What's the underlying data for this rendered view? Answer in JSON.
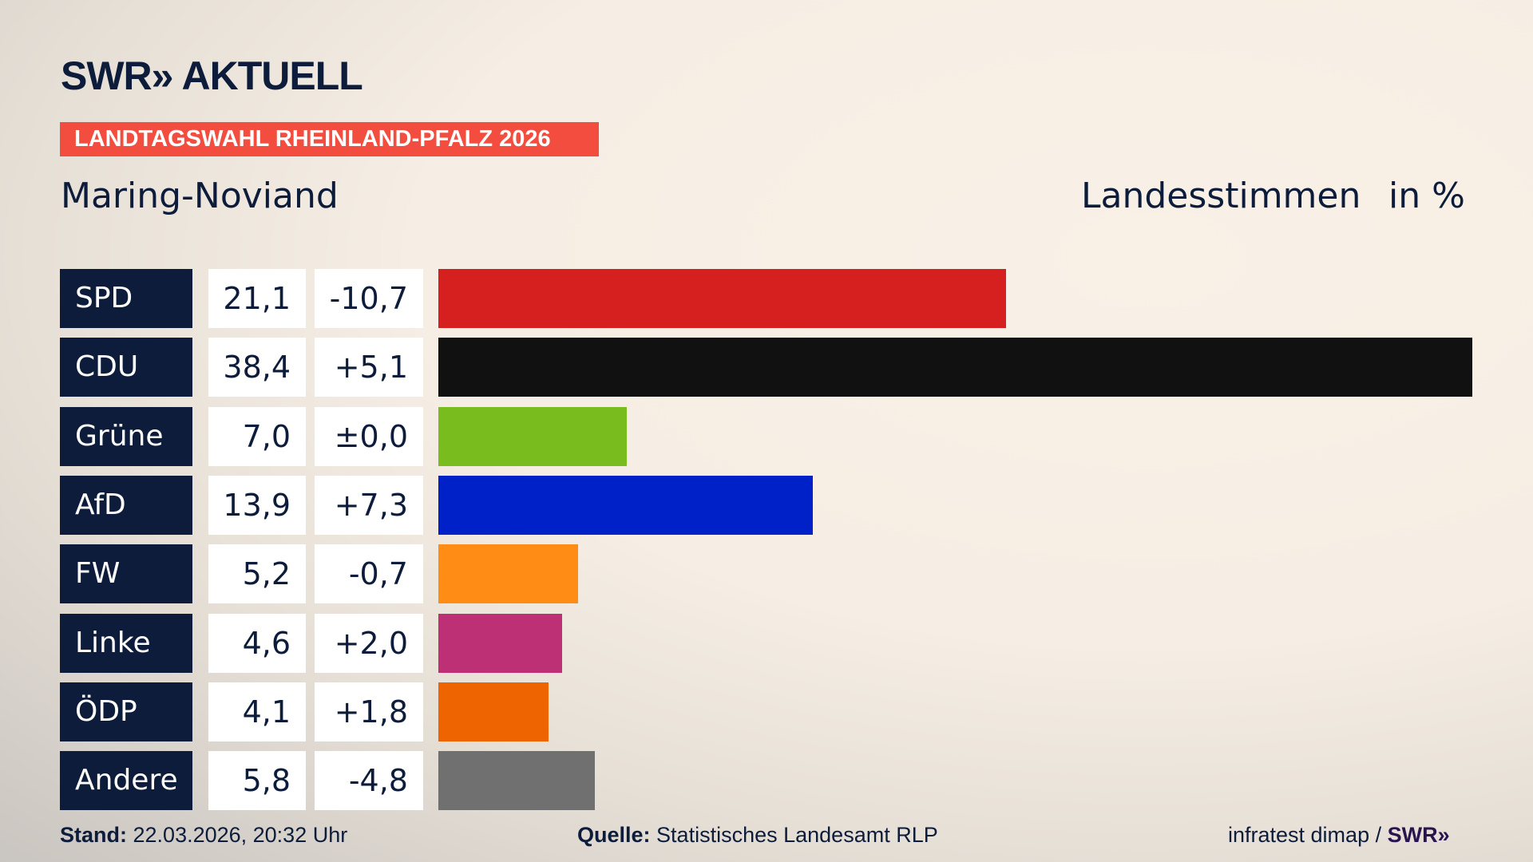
{
  "logo": "SWR» AKTUELL",
  "banner": "LANDTAGSWAHL RHEINLAND-PFALZ 2026",
  "subtitle": "Maring-Noviand",
  "header": {
    "label": "Landesstimmen",
    "unit": "in %"
  },
  "chart_data": {
    "type": "bar",
    "orientation": "horizontal",
    "categories": [
      "SPD",
      "CDU",
      "Grüne",
      "AfD",
      "FW",
      "Linke",
      "ÖDP",
      "Andere"
    ],
    "values": [
      21.1,
      38.4,
      7.0,
      13.9,
      5.2,
      4.6,
      4.1,
      5.8
    ],
    "value_labels": [
      "21,1",
      "38,4",
      "7,0",
      "13,9",
      "5,2",
      "4,6",
      "4,1",
      "5,8"
    ],
    "diff_labels": [
      "-10,7",
      "+5,1",
      "±0,0",
      "+7,3",
      "-0,7",
      "+2,0",
      "+1,8",
      "-4,8"
    ],
    "colors": [
      "#d62020",
      "#111111",
      "#78bc1e",
      "#0021c8",
      "#ff8c14",
      "#bd3075",
      "#ee6400",
      "#707070"
    ]
  },
  "footer": {
    "stand_label": "Stand:",
    "stand": "22.03.2026, 20:32 Uhr",
    "quelle_label": "Quelle:",
    "quelle": "Statistisches Landesamt RLP",
    "credit": "infratest dimap /",
    "credit_logo": "SWR»"
  }
}
